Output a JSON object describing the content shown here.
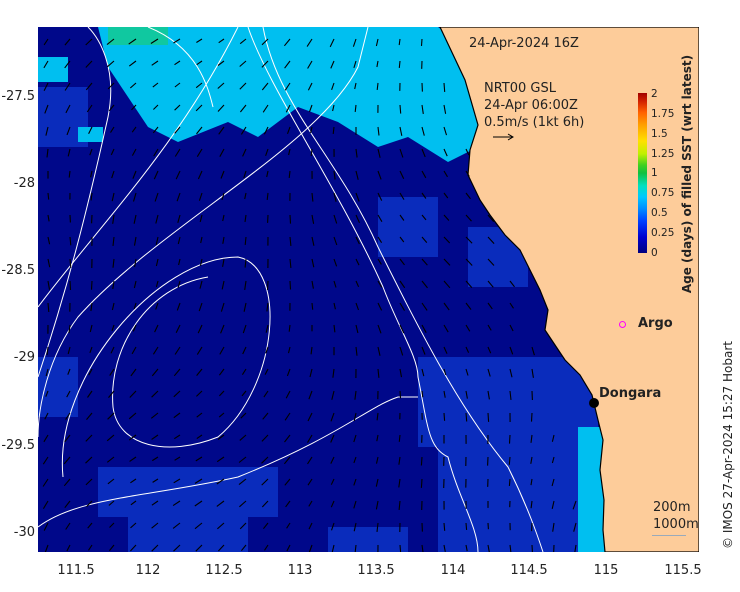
{
  "title": "24-Apr-2024 16Z",
  "product": {
    "line1": "NRT00 GSL",
    "line2": "24-Apr 06:00Z",
    "line3": "0.5m/s (1kt 6h)"
  },
  "colorbar": {
    "label": "Age (days) of filled SST (wrt latest)",
    "ticks": [
      "2",
      "1.75",
      "1.5",
      "1.25",
      "1",
      "0.75",
      "0.5",
      "0.25",
      "0"
    ]
  },
  "axes": {
    "x_ticks": [
      "111.5",
      "112",
      "112.5",
      "113",
      "113.5",
      "114",
      "114.5",
      "115",
      "115.5"
    ],
    "y_ticks": [
      "-27.5",
      "-28",
      "-28.5",
      "-29",
      "-29.5",
      "-30"
    ]
  },
  "markers": {
    "argo": "Argo",
    "dongara": "Dongara"
  },
  "isobaths": {
    "shallow": "200m",
    "deep": "1000m"
  },
  "copyright": "© IMOS 27-Apr-2024 15:27 Hobart",
  "colors": {
    "ocean": "#00088a",
    "ocean_mid": "#0a2cbc",
    "cyan": "#00bff0",
    "land": "#fdcc9a",
    "argo": "#ff00ff"
  }
}
